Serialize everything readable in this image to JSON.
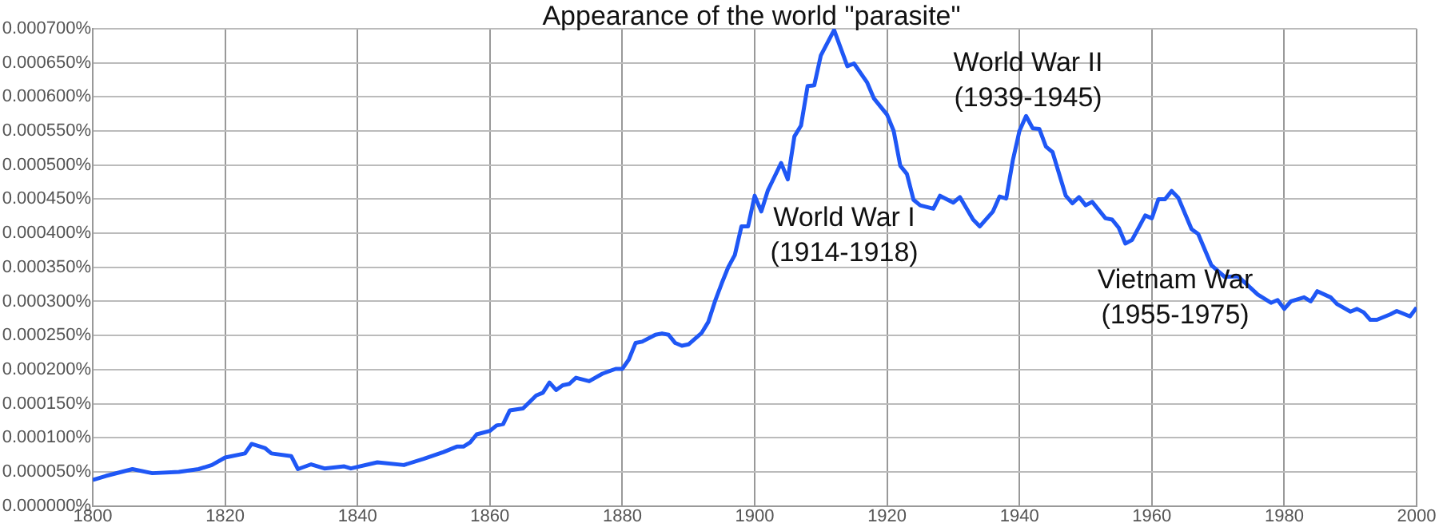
{
  "chart_data": {
    "type": "line",
    "title": "Appearance of the world \"parasite\"",
    "x": [
      1800,
      1802,
      1806,
      1809,
      1813,
      1816,
      1818,
      1820,
      1823,
      1824,
      1826,
      1827,
      1830,
      1831,
      1833,
      1835,
      1838,
      1839,
      1843,
      1847,
      1850,
      1853,
      1855,
      1856,
      1857,
      1858,
      1860,
      1861,
      1862,
      1863,
      1865,
      1867,
      1868,
      1869,
      1870,
      1871,
      1872,
      1873,
      1875,
      1877,
      1879,
      1880,
      1881,
      1882,
      1883,
      1885,
      1886,
      1887,
      1888,
      1889,
      1890,
      1892,
      1893,
      1894,
      1895,
      1896,
      1897,
      1898,
      1899,
      1900,
      1901,
      1902,
      1903,
      1904,
      1905,
      1906,
      1907,
      1908,
      1909,
      1910,
      1912,
      1914,
      1915,
      1917,
      1918,
      1920,
      1921,
      1922,
      1923,
      1924,
      1925,
      1927,
      1928,
      1930,
      1931,
      1933,
      1934,
      1936,
      1937,
      1938,
      1939,
      1940,
      1941,
      1942,
      1943,
      1944,
      1945,
      1947,
      1948,
      1949,
      1950,
      1951,
      1953,
      1954,
      1955,
      1956,
      1957,
      1959,
      1960,
      1961,
      1962,
      1963,
      1964,
      1966,
      1967,
      1969,
      1971,
      1973,
      1976,
      1978,
      1979,
      1980,
      1981,
      1983,
      1984,
      1985,
      1987,
      1988,
      1990,
      1991,
      1992,
      1993,
      1994,
      1996,
      1997,
      1999,
      2000
    ],
    "series": [
      {
        "color": "#1f57f5",
        "values": [
          3.8e-05,
          4.4e-05,
          5.4e-05,
          4.8e-05,
          5e-05,
          5.4e-05,
          6e-05,
          7.1e-05,
          7.7e-05,
          9.1e-05,
          8.5e-05,
          7.7e-05,
          7.3e-05,
          5.4e-05,
          6.1e-05,
          5.5e-05,
          5.8e-05,
          5.5e-05,
          6.4e-05,
          6e-05,
          6.9e-05,
          7.9e-05,
          8.7e-05,
          8.7e-05,
          9.3e-05,
          0.000105,
          0.00011,
          0.000118,
          0.00012,
          0.00014,
          0.000143,
          0.000162,
          0.000166,
          0.000181,
          0.00017,
          0.000177,
          0.000179,
          0.000188,
          0.000183,
          0.000194,
          0.000201,
          0.000201,
          0.000215,
          0.000239,
          0.000241,
          0.000251,
          0.000253,
          0.000251,
          0.000239,
          0.000235,
          0.000237,
          0.000254,
          0.00027,
          0.0003,
          0.000326,
          0.00035,
          0.000368,
          0.00041,
          0.00041,
          0.000455,
          0.000432,
          0.000463,
          0.000483,
          0.000503,
          0.000479,
          0.000542,
          0.000558,
          0.000616,
          0.000617,
          0.000661,
          0.000698,
          0.000645,
          0.000649,
          0.000621,
          0.000598,
          0.000574,
          0.00055,
          0.000499,
          0.000487,
          0.000449,
          0.000441,
          0.000436,
          0.000455,
          0.000445,
          0.000453,
          0.00042,
          0.00041,
          0.000432,
          0.000454,
          0.000451,
          0.000507,
          0.00055,
          0.000572,
          0.000554,
          0.000553,
          0.000527,
          0.000519,
          0.000455,
          0.000444,
          0.000453,
          0.000441,
          0.000446,
          0.000422,
          0.00042,
          0.000408,
          0.000385,
          0.00039,
          0.000426,
          0.000422,
          0.00045,
          0.00045,
          0.000462,
          0.000452,
          0.000406,
          0.000399,
          0.000353,
          0.000336,
          0.000337,
          0.00031,
          0.000298,
          0.000302,
          0.000289,
          0.0003,
          0.000306,
          0.0003,
          0.000315,
          0.000306,
          0.000296,
          0.000285,
          0.000289,
          0.000284,
          0.000273,
          0.000273,
          0.000281,
          0.000286,
          0.000278,
          0.000291
        ]
      }
    ],
    "xlim": [
      1800,
      2000
    ],
    "xticks": [
      1800,
      1820,
      1840,
      1860,
      1880,
      1900,
      1920,
      1940,
      1960,
      1980,
      2000
    ],
    "ylim": [
      0,
      0.0007
    ],
    "yticks": [
      {
        "value": 0,
        "label": "0.000000%"
      },
      {
        "value": 5e-05,
        "label": "0.000050%"
      },
      {
        "value": 0.0001,
        "label": "0.000100%"
      },
      {
        "value": 0.00015,
        "label": "0.000150%"
      },
      {
        "value": 0.0002,
        "label": "0.000200%"
      },
      {
        "value": 0.00025,
        "label": "0.000250%"
      },
      {
        "value": 0.0003,
        "label": "0.000300%"
      },
      {
        "value": 0.00035,
        "label": "0.000350%"
      },
      {
        "value": 0.0004,
        "label": "0.000400%"
      },
      {
        "value": 0.00045,
        "label": "0.000450%"
      },
      {
        "value": 0.0005,
        "label": "0.000500%"
      },
      {
        "value": 0.00055,
        "label": "0.000550%"
      },
      {
        "value": 0.0006,
        "label": "0.000600%"
      },
      {
        "value": 0.00065,
        "label": "0.000650%"
      },
      {
        "value": 0.0007,
        "label": "0.000700%"
      }
    ],
    "grid": true,
    "legend": false,
    "marker": "none",
    "line_style": "solid",
    "annotations": [
      "World War I\n(1914-1918)",
      "World War II\n(1939-1945)",
      "Vietnam War\n(1955-1975)"
    ]
  }
}
